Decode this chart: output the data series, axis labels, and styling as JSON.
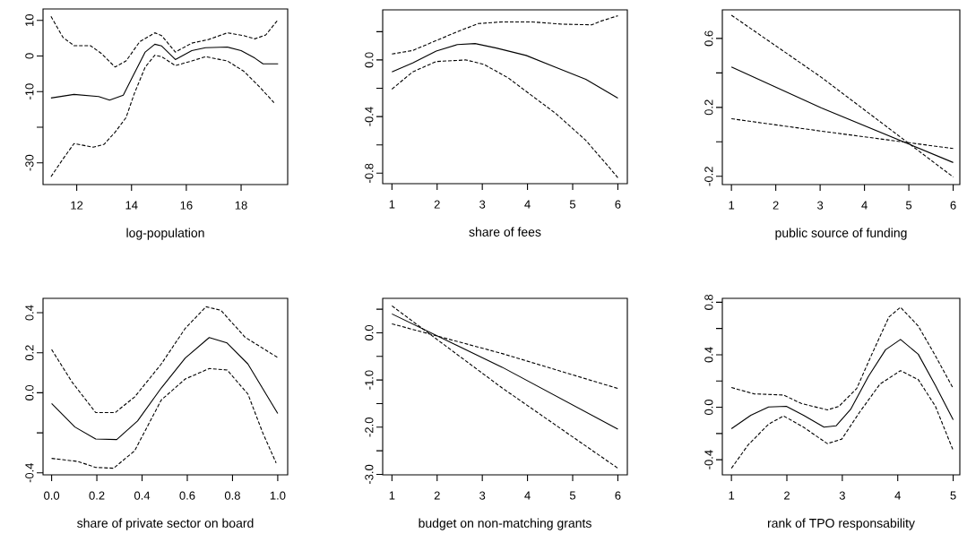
{
  "chart_data": [
    {
      "type": "line",
      "xlabel": "log-population",
      "xlim": [
        10.77,
        19.7
      ],
      "ylim": [
        -36.1,
        13.2
      ],
      "xticks": [
        12,
        14,
        16,
        18
      ],
      "yticks": [
        -30,
        {
          "value": -20,
          "label": null
        },
        -10,
        0,
        10
      ],
      "series": [
        {
          "color": "#000000",
          "line_style": "solid",
          "x": [
            11.06,
            11.9,
            12.8,
            13.2,
            13.7,
            14.0,
            14.5,
            14.85,
            15.1,
            15.6,
            16.2,
            16.7,
            17.5,
            18.0,
            18.5,
            18.8,
            19.35
          ],
          "values": [
            -11.8,
            -10.8,
            -11.4,
            -12.4,
            -11,
            -6.4,
            1.1,
            3.3,
            2.8,
            -1,
            1.5,
            2.3,
            2.5,
            1.5,
            -0.6,
            -2.2,
            -2.2
          ]
        },
        {
          "color": "#000000",
          "line_style": "dashed",
          "x": [
            11.06,
            11.5,
            11.9,
            12.5,
            12.9,
            13.4,
            13.8,
            14.3,
            14.85,
            15.1,
            15.6,
            16.2,
            16.8,
            17.5,
            18.1,
            18.5,
            18.9,
            19.35
          ],
          "values": [
            11.1,
            5.2,
            2.9,
            2.9,
            0.7,
            -3.1,
            -1.4,
            4,
            6.5,
            5.7,
            1.1,
            3.6,
            4.6,
            6.5,
            5.7,
            4.8,
            5.9,
            10.2
          ]
        },
        {
          "color": "#000000",
          "line_style": "dashed",
          "x": [
            11.06,
            11.5,
            11.9,
            12.6,
            13.0,
            13.4,
            13.8,
            14.1,
            14.5,
            14.85,
            15.1,
            15.6,
            16.2,
            16.7,
            17.5,
            18.1,
            18.7,
            19.2
          ],
          "values": [
            -33.9,
            -28.9,
            -24.6,
            -25.6,
            -24.8,
            -21.4,
            -17.3,
            -10.6,
            -3.1,
            0.2,
            -0.2,
            -2.7,
            -1.4,
            -0.2,
            -1.4,
            -4.3,
            -8.9,
            -13.1
          ]
        }
      ]
    },
    {
      "type": "line",
      "xlabel": "share of fees",
      "xlim": [
        0.795,
        6.21
      ],
      "ylim": [
        -0.874,
        0.354
      ],
      "xticks": [
        1,
        2,
        3,
        4,
        5,
        6
      ],
      "yticks": [
        -0.8,
        {
          "value": -0.6,
          "label": null
        },
        -0.4,
        {
          "value": -0.2,
          "label": null
        },
        {
          "value": 0.0,
          "label": "0.0"
        },
        {
          "value": 0.2,
          "label": null
        }
      ],
      "series": [
        {
          "color": "#000000",
          "line_style": "solid",
          "x": [
            1,
            1.46,
            1.98,
            2.45,
            2.84,
            3.31,
            3.97,
            4.63,
            5.29,
            6
          ],
          "values": [
            -0.084,
            -0.021,
            0.063,
            0.109,
            0.116,
            0.084,
            0.032,
            -0.053,
            -0.137,
            -0.269
          ]
        },
        {
          "color": "#000000",
          "line_style": "dashed",
          "x": [
            1,
            1.46,
            1.98,
            2.45,
            2.91,
            3.44,
            4.1,
            4.76,
            5.42,
            5.62,
            6
          ],
          "values": [
            0.042,
            0.067,
            0.137,
            0.2,
            0.257,
            0.269,
            0.269,
            0.253,
            0.248,
            0.274,
            0.312
          ]
        },
        {
          "color": "#000000",
          "line_style": "dashed",
          "x": [
            1,
            1.46,
            1.98,
            2.64,
            3.04,
            3.57,
            4.1,
            4.63,
            5.29,
            5.75,
            6
          ],
          "values": [
            -0.206,
            -0.084,
            -0.011,
            0.0,
            -0.032,
            -0.126,
            -0.253,
            -0.379,
            -0.568,
            -0.737,
            -0.832
          ]
        }
      ]
    },
    {
      "type": "line",
      "xlabel": "public source of funding",
      "xlim": [
        0.795,
        6.15
      ],
      "ylim": [
        -0.248,
        0.766
      ],
      "xticks": [
        1,
        2,
        3,
        4,
        5,
        6
      ],
      "yticks": [
        -0.2,
        {
          "value": 0.0,
          "label": null
        },
        0.2,
        {
          "value": 0.4,
          "label": null
        },
        0.6
      ],
      "series": [
        {
          "color": "#000000",
          "line_style": "solid",
          "x": [
            1,
            3.03,
            6
          ],
          "values": [
            0.434,
            0.197,
            -0.12
          ]
        },
        {
          "color": "#000000",
          "line_style": "dashed",
          "x": [
            1,
            3.03,
            6
          ],
          "values": [
            0.735,
            0.374,
            -0.204
          ]
        },
        {
          "color": "#000000",
          "line_style": "dashed",
          "x": [
            1,
            3.03,
            6
          ],
          "values": [
            0.134,
            0.062,
            -0.039
          ]
        }
      ]
    },
    {
      "type": "line",
      "xlabel": "share of private sector on board",
      "xlim": [
        -0.038,
        1.044
      ],
      "ylim": [
        -0.41,
        0.472
      ],
      "xticks": [
        {
          "value": 0.0,
          "label": "0.0"
        },
        0.2,
        0.4,
        0.6,
        0.8,
        {
          "value": 1.0,
          "label": "1.0"
        }
      ],
      "yticks": [
        -0.4,
        {
          "value": -0.2,
          "label": null
        },
        {
          "value": 0.0,
          "label": "0.0"
        },
        0.2,
        0.4
      ],
      "series": [
        {
          "color": "#000000",
          "line_style": "solid",
          "x": [
            0,
            0.103,
            0.195,
            0.288,
            0.38,
            0.485,
            0.591,
            0.697,
            0.776,
            0.868,
            1
          ],
          "values": [
            -0.054,
            -0.171,
            -0.231,
            -0.234,
            -0.141,
            0.024,
            0.174,
            0.276,
            0.249,
            0.144,
            -0.103
          ]
        },
        {
          "color": "#000000",
          "line_style": "dashed",
          "x": [
            0,
            0.09,
            0.195,
            0.281,
            0.367,
            0.485,
            0.591,
            0.683,
            0.749,
            0.855,
            1
          ],
          "values": [
            0.216,
            0.054,
            -0.099,
            -0.099,
            -0.021,
            0.144,
            0.322,
            0.43,
            0.412,
            0.278,
            0.176
          ]
        },
        {
          "color": "#000000",
          "line_style": "dashed",
          "x": [
            0,
            0.116,
            0.195,
            0.274,
            0.367,
            0.485,
            0.591,
            0.697,
            0.776,
            0.868,
            0.934,
            0.993
          ],
          "values": [
            -0.328,
            -0.343,
            -0.373,
            -0.377,
            -0.29,
            -0.036,
            0.069,
            0.121,
            0.114,
            -0.006,
            -0.201,
            -0.351
          ]
        }
      ]
    },
    {
      "type": "line",
      "xlabel": "budget on non-matching grants",
      "xlim": [
        0.795,
        6.21
      ],
      "ylim": [
        -3.01,
        0.73
      ],
      "xticks": [
        1,
        2,
        3,
        4,
        5,
        6
      ],
      "yticks": [
        {
          "value": -3.0,
          "label": "-3.0"
        },
        {
          "value": -2.5,
          "label": null
        },
        {
          "value": -2.0,
          "label": "-2.0"
        },
        {
          "value": -1.5,
          "label": null
        },
        {
          "value": -1.0,
          "label": "-1.0"
        },
        {
          "value": -0.5,
          "label": null
        },
        {
          "value": 0.0,
          "label": "0.0"
        },
        {
          "value": 0.5,
          "label": null
        }
      ],
      "series": [
        {
          "color": "#000000",
          "line_style": "solid",
          "x": [
            1,
            3.44,
            6
          ],
          "values": [
            0.4,
            -0.73,
            -2.04
          ]
        },
        {
          "color": "#000000",
          "line_style": "dashed",
          "x": [
            1,
            3.44,
            6
          ],
          "values": [
            0.19,
            -0.44,
            -1.18
          ]
        },
        {
          "color": "#000000",
          "line_style": "dashed",
          "x": [
            1,
            3.44,
            6
          ],
          "values": [
            0.57,
            -1.17,
            -2.87
          ]
        }
      ]
    },
    {
      "type": "line",
      "xlabel": "rank of TPO responsability",
      "xlim": [
        0.836,
        5.12
      ],
      "ylim": [
        -0.515,
        0.83
      ],
      "xticks": [
        1,
        2,
        3,
        4,
        5
      ],
      "yticks": [
        -0.4,
        {
          "value": -0.2,
          "label": null
        },
        {
          "value": 0.0,
          "label": "0.0"
        },
        {
          "value": 0.2,
          "label": null
        },
        0.4,
        {
          "value": 0.6,
          "label": null
        },
        0.8
      ],
      "series": [
        {
          "color": "#000000",
          "line_style": "solid",
          "x": [
            1,
            1.35,
            1.67,
            1.99,
            2.3,
            2.67,
            2.89,
            3.15,
            3.47,
            3.78,
            4.05,
            4.37,
            4.68,
            5
          ],
          "values": [
            -0.163,
            -0.061,
            0.002,
            0.007,
            -0.061,
            -0.152,
            -0.141,
            -0.016,
            0.234,
            0.438,
            0.517,
            0.404,
            0.166,
            -0.095
          ]
        },
        {
          "color": "#000000",
          "line_style": "dashed",
          "x": [
            1,
            1.41,
            1.94,
            2.26,
            2.73,
            2.94,
            3.26,
            3.52,
            3.84,
            4.05,
            4.37,
            4.68,
            5
          ],
          "values": [
            0.15,
            0.102,
            0.093,
            0.029,
            -0.02,
            0.007,
            0.143,
            0.392,
            0.687,
            0.762,
            0.619,
            0.392,
            0.143
          ]
        },
        {
          "color": "#000000",
          "line_style": "dashed",
          "x": [
            1,
            1.3,
            1.67,
            1.94,
            2.3,
            2.73,
            2.99,
            3.31,
            3.68,
            4.05,
            4.37,
            4.68,
            5
          ],
          "values": [
            -0.465,
            -0.288,
            -0.129,
            -0.066,
            -0.152,
            -0.277,
            -0.243,
            -0.039,
            0.177,
            0.279,
            0.211,
            0.007,
            -0.329
          ]
        }
      ]
    }
  ]
}
